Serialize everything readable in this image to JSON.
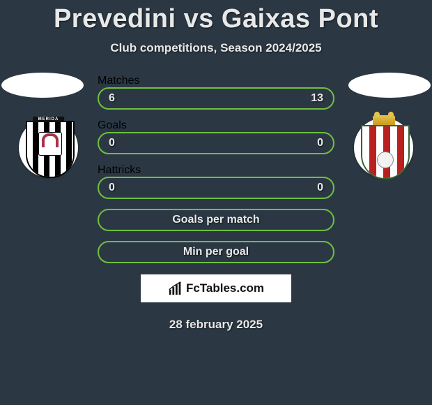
{
  "title": "Prevedini vs Gaixas Pont",
  "subtitle": "Club competitions, Season 2024/2025",
  "rows": [
    {
      "left": "6",
      "label": "Matches",
      "right": "13",
      "color": "#6fbf3f",
      "layout": "3col"
    },
    {
      "left": "0",
      "label": "Goals",
      "right": "0",
      "color": "#6fbf3f",
      "layout": "3col"
    },
    {
      "left": "0",
      "label": "Hattricks",
      "right": "0",
      "color": "#6fbf3f",
      "layout": "3col"
    },
    {
      "left": "",
      "label": "Goals per match",
      "right": "",
      "color": "#6fbf3f",
      "layout": "center"
    },
    {
      "left": "",
      "label": "Min per goal",
      "right": "",
      "color": "#6fbf3f",
      "layout": "center"
    }
  ],
  "watermark": "FcTables.com",
  "date": "28 february 2025",
  "background_color": "#2b3844",
  "badges": {
    "left": {
      "name": "merida-crest",
      "banner_text": "MERIDA"
    },
    "right": {
      "name": "algeciras-crest"
    }
  }
}
